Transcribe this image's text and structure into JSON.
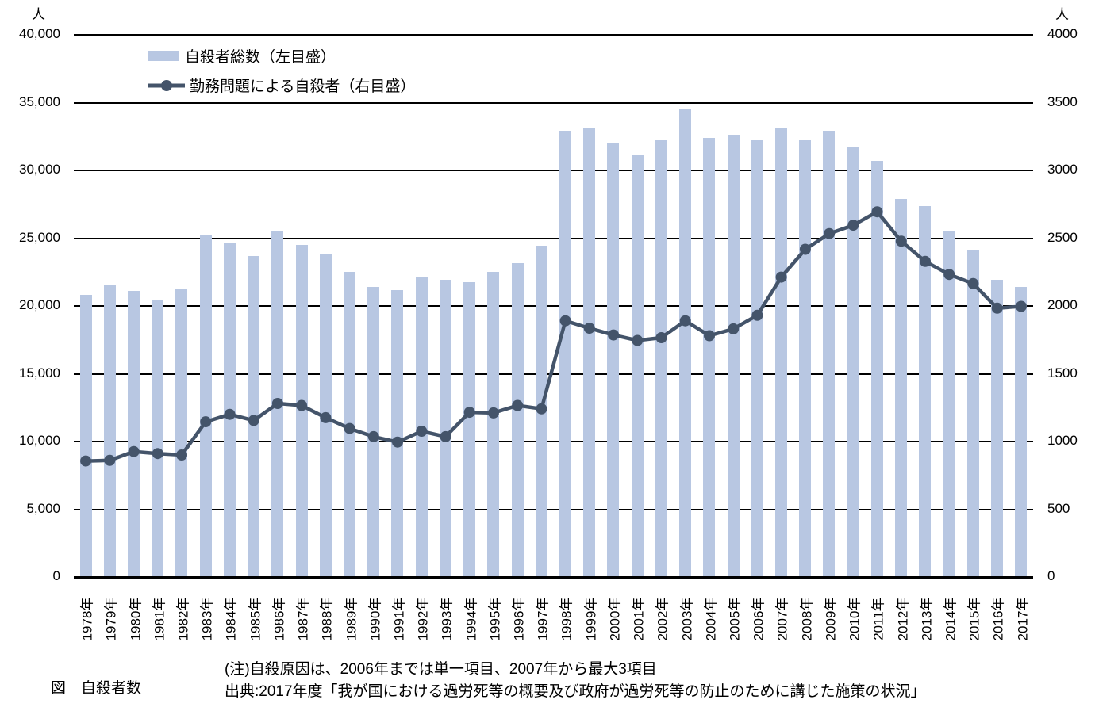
{
  "caption": "図　自殺者数",
  "notes": {
    "line1": "(注)自殺原因は、2006年までは単一項目、2007年から最大3項目",
    "line2": "出典:2017年度「我が国における過労死等の概要及び政府が過労死等の防止のために講じた施策の状況」"
  },
  "legend": [
    {
      "label": "自殺者総数（左目盛）",
      "type": "bar"
    },
    {
      "label": "勤務問題による自殺者（右目盛）",
      "type": "line"
    }
  ],
  "colors": {
    "bar": "#b8c7e2",
    "line": "#44546a",
    "grid": "#000000",
    "background": "#ffffff"
  },
  "chart_data": {
    "type": "combo",
    "categories": [
      "1978年",
      "1979年",
      "1980年",
      "1981年",
      "1982年",
      "1983年",
      "1984年",
      "1985年",
      "1986年",
      "1987年",
      "1988年",
      "1989年",
      "1990年",
      "1991年",
      "1992年",
      "1993年",
      "1994年",
      "1995年",
      "1996年",
      "1997年",
      "1998年",
      "1999年",
      "2000年",
      "2001年",
      "2002年",
      "2003年",
      "2004年",
      "2005年",
      "2006年",
      "2007年",
      "2008年",
      "2009年",
      "2010年",
      "2011年",
      "2012年",
      "2013年",
      "2014年",
      "2015年",
      "2016年",
      "2017年"
    ],
    "series": [
      {
        "name": "自殺者総数（左目盛）",
        "type": "bar",
        "axis": "left",
        "color": "#b8c7e2",
        "values": [
          20788,
          21503,
          21048,
          20434,
          21228,
          25202,
          24596,
          23599,
          25524,
          24460,
          23742,
          22436,
          21346,
          21084,
          22104,
          21851,
          21679,
          22445,
          23104,
          24391,
          32863,
          33048,
          31957,
          31042,
          32143,
          34427,
          32325,
          32552,
          32155,
          33093,
          32249,
          32845,
          31690,
          30651,
          27858,
          27283,
          25427,
          24025,
          21897,
          21321
        ]
      },
      {
        "name": "勤務問題による自殺者（右目盛）",
        "type": "line",
        "axis": "right",
        "color": "#44546a",
        "values": [
          850,
          855,
          920,
          905,
          895,
          1140,
          1195,
          1150,
          1275,
          1260,
          1170,
          1090,
          1030,
          990,
          1070,
          1030,
          1210,
          1205,
          1260,
          1235,
          1885,
          1830,
          1780,
          1740,
          1760,
          1885,
          1775,
          1825,
          1925,
          2207,
          2412,
          2528,
          2590,
          2689,
          2472,
          2323,
          2227,
          2159,
          1978,
          1991
        ]
      }
    ],
    "left_axis": {
      "min": 0,
      "max": 40000,
      "step": 5000,
      "unit": "人",
      "tick_labels": [
        "0",
        "5,000",
        "10,000",
        "15,000",
        "20,000",
        "25,000",
        "30,000",
        "35,000",
        "40,000"
      ]
    },
    "right_axis": {
      "min": 0,
      "max": 4000,
      "step": 500,
      "unit": "人",
      "tick_labels": [
        "0",
        "500",
        "1000",
        "1500",
        "2000",
        "2500",
        "3000",
        "3500",
        "4000"
      ]
    },
    "grid": true,
    "legend_position": "top-left"
  }
}
